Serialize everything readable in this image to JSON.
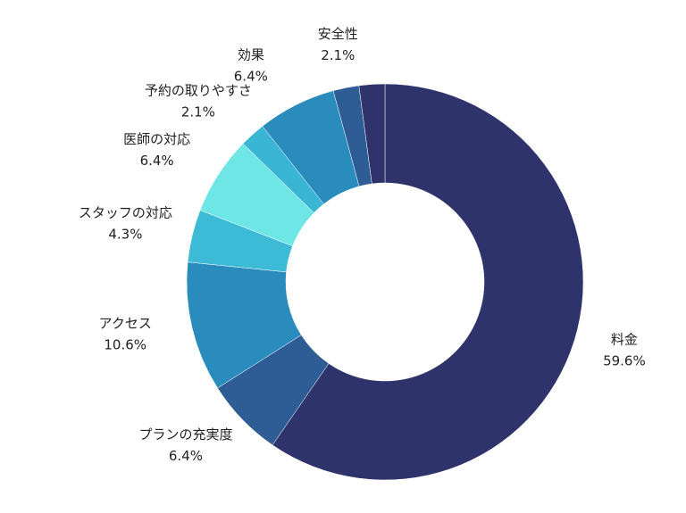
{
  "chart_data": {
    "type": "donut",
    "categories": [
      "料金",
      "プランの充実度",
      "アクセス",
      "スタッフの対応",
      "医師の対応",
      "予約の取りやすさ",
      "効果",
      "安全性",
      null
    ],
    "values": [
      59.6,
      6.4,
      10.6,
      4.3,
      6.4,
      2.1,
      6.4,
      2.1,
      2.1
    ],
    "value_labels": [
      "59.6%",
      "6.4%",
      "10.6%",
      "4.3%",
      "6.4%",
      "2.1%",
      "6.4%",
      "2.1%",
      null
    ],
    "colors": [
      "#2f336b",
      "#2e5c94",
      "#2a8bbd",
      "#3dbad6",
      "#6ee6e6",
      "#3ab6d4",
      "#2a8bbd",
      "#2e5c94",
      "#2f336b"
    ]
  }
}
